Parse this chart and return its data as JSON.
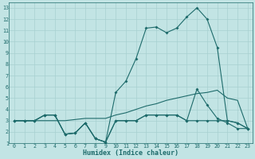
{
  "xlabel": "Humidex (Indice chaleur)",
  "xlim": [
    -0.5,
    23.5
  ],
  "ylim": [
    1,
    13.5
  ],
  "yticks": [
    1,
    2,
    3,
    4,
    5,
    6,
    7,
    8,
    9,
    10,
    11,
    12,
    13
  ],
  "xticks": [
    0,
    1,
    2,
    3,
    4,
    5,
    6,
    7,
    8,
    9,
    10,
    11,
    12,
    13,
    14,
    15,
    16,
    17,
    18,
    19,
    20,
    21,
    22,
    23
  ],
  "bg_color": "#c2e4e4",
  "grid_color": "#a8d0d0",
  "line_color": "#1e6b6b",
  "line_spike": [
    3,
    3,
    3,
    3.5,
    3.5,
    1.8,
    1.9,
    2.8,
    1.4,
    1.1,
    3,
    3,
    3,
    3.5,
    3.5,
    3.5,
    3.5,
    3,
    3,
    3,
    3,
    3,
    2.8,
    2.3
  ],
  "line_peak": [
    3,
    3,
    3,
    3.5,
    3.5,
    1.8,
    1.9,
    2.8,
    1.4,
    1.1,
    5.5,
    6.5,
    8.5,
    11.2,
    11.3,
    10.8,
    11.2,
    12.2,
    13,
    12,
    9.5,
    3,
    2.8,
    2.3
  ],
  "line_mid": [
    3,
    3,
    3,
    3.5,
    3.5,
    1.8,
    1.9,
    2.8,
    1.4,
    1.1,
    3,
    3,
    3,
    3.5,
    3.5,
    3.5,
    3.5,
    3,
    5.8,
    4.4,
    3.2,
    2.8,
    2.3,
    2.3
  ],
  "line_trend": [
    3,
    3,
    3,
    3,
    3,
    3,
    3.1,
    3.2,
    3.2,
    3.2,
    3.5,
    3.7,
    4.0,
    4.3,
    4.5,
    4.8,
    5.0,
    5.2,
    5.4,
    5.5,
    5.7,
    5.0,
    4.8,
    2.3
  ]
}
